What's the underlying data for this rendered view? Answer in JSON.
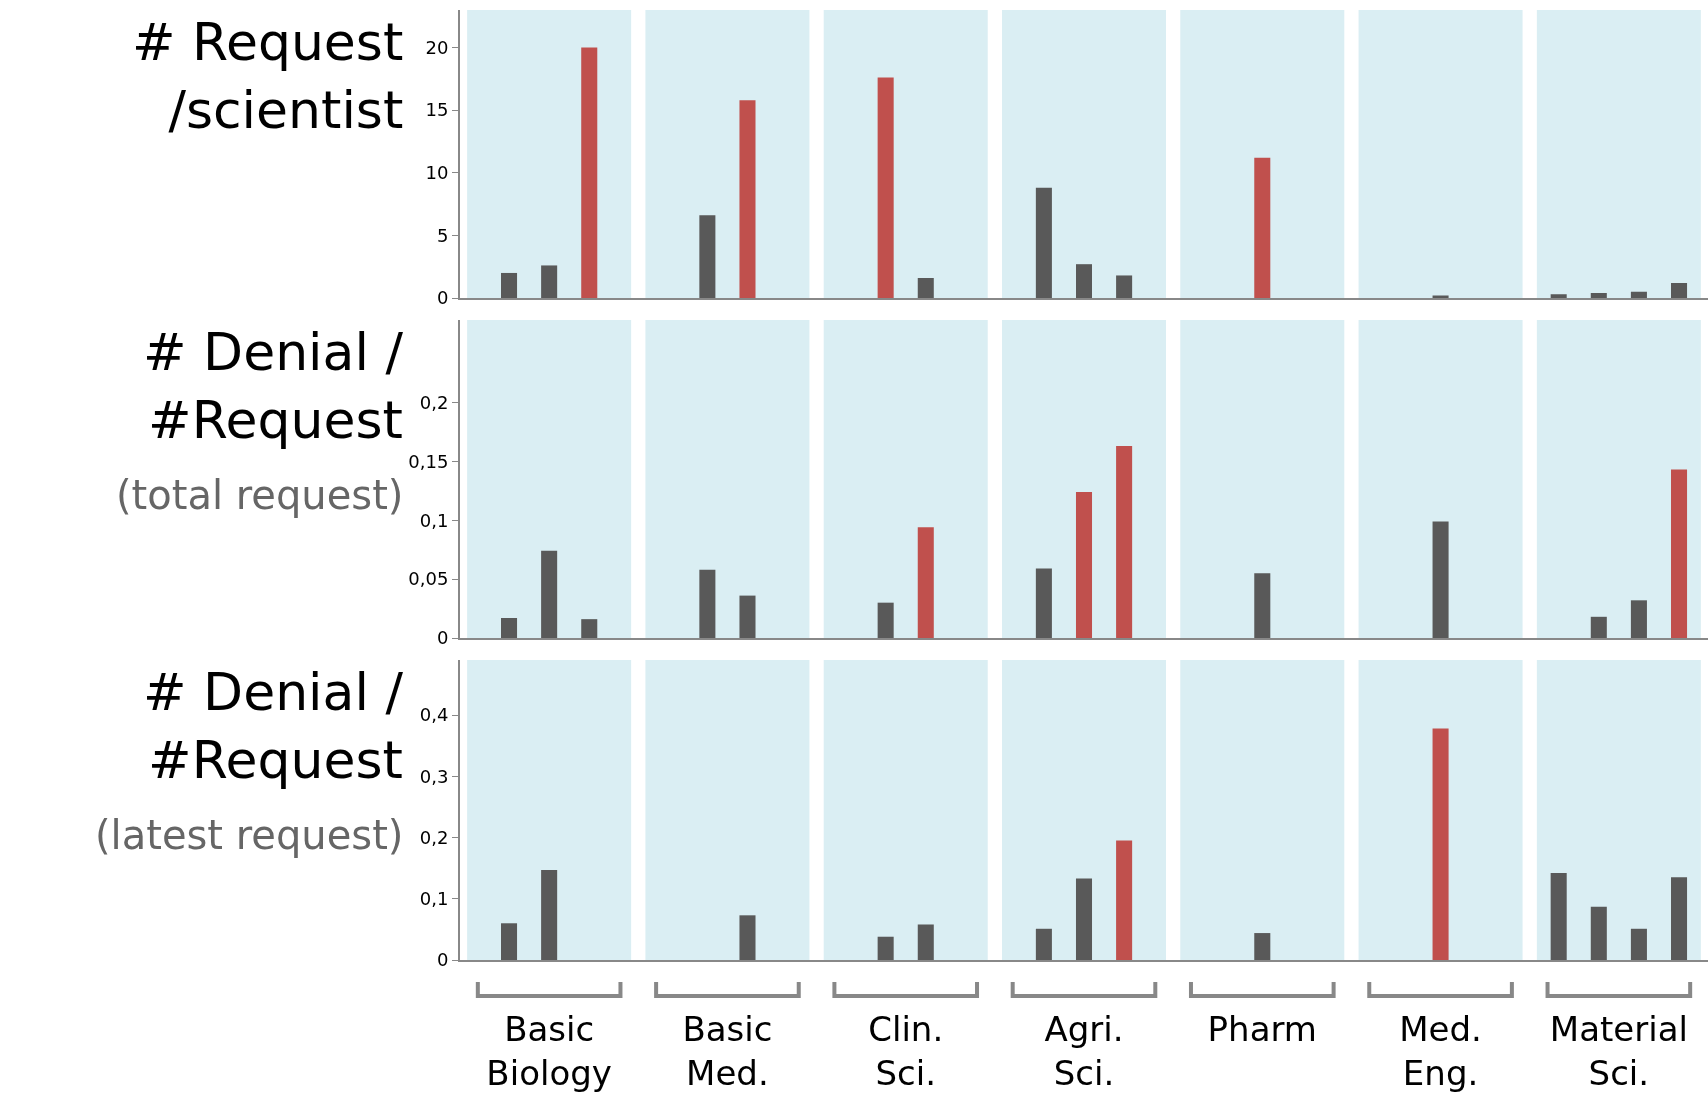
{
  "chart_data": [
    {
      "type": "bar",
      "ylabel": "# Request\n/scientist",
      "categories": [
        "Basic Biology",
        "Basic Med.",
        "Clin. Sci.",
        "Agri. Sci.",
        "Pharm",
        "Med. Eng.",
        "Material Sci."
      ],
      "series": [
        {
          "values": [
            2.0,
            6.6,
            17.6,
            8.8,
            11.2,
            0.2,
            0.3
          ],
          "colors": [
            "#595959",
            "#595959",
            "#c0504d",
            "#595959",
            "#c0504d",
            "#595959",
            "#595959"
          ]
        },
        {
          "values": [
            2.6,
            15.8,
            1.6,
            2.7,
            null,
            null,
            0.4
          ],
          "colors": [
            "#595959",
            "#c0504d",
            "#595959",
            "#595959",
            null,
            null,
            "#595959"
          ]
        },
        {
          "values": [
            20.0,
            null,
            null,
            1.8,
            null,
            null,
            0.5
          ],
          "colors": [
            "#c0504d",
            null,
            null,
            "#595959",
            null,
            null,
            "#595959"
          ]
        },
        {
          "values": [
            null,
            null,
            null,
            null,
            null,
            null,
            1.2
          ],
          "colors": [
            null,
            null,
            null,
            null,
            null,
            null,
            "#595959"
          ]
        }
      ],
      "bands": [
        {
          "axis": "x",
          "from": "Basic Biology",
          "to": "Basic Biology",
          "color": "#daeef3"
        },
        {
          "axis": "x",
          "from": "Basic Med.",
          "to": "Basic Med.",
          "color": "#daeef3"
        },
        {
          "axis": "x",
          "from": "Clin. Sci.",
          "to": "Clin. Sci.",
          "color": "#daeef3"
        },
        {
          "axis": "x",
          "from": "Agri. Sci.",
          "to": "Agri. Sci.",
          "color": "#daeef3"
        },
        {
          "axis": "x",
          "from": "Pharm",
          "to": "Pharm",
          "color": "#daeef3"
        },
        {
          "axis": "x",
          "from": "Med. Eng.",
          "to": "Med. Eng.",
          "color": "#daeef3"
        },
        {
          "axis": "x",
          "from": "Material Sci.",
          "to": "Material Sci.",
          "color": "#daeef3"
        }
      ],
      "ylim": [
        0,
        23
      ],
      "yticks": [
        0,
        5,
        10,
        15,
        20
      ],
      "tick_labels": "y"
    },
    {
      "type": "bar",
      "ylabel": "# Denial /\n#Request",
      "annotations": [
        "(total request)"
      ],
      "categories": [
        "Basic Biology",
        "Basic Med.",
        "Clin. Sci.",
        "Agri. Sci.",
        "Pharm",
        "Med. Eng.",
        "Material Sci."
      ],
      "series": [
        {
          "values": [
            0.017,
            0.058,
            0.03,
            0.059,
            0.055,
            0.099,
            0
          ],
          "colors": [
            "#595959",
            "#595959",
            "#595959",
            "#595959",
            "#595959",
            "#595959",
            "#595959"
          ]
        },
        {
          "values": [
            0.074,
            0.036,
            0.094,
            0.124,
            null,
            null,
            0.018
          ],
          "colors": [
            "#595959",
            "#595959",
            "#c0504d",
            "#c0504d",
            null,
            null,
            "#595959"
          ]
        },
        {
          "values": [
            0.016,
            null,
            null,
            0.163,
            null,
            null,
            0.032
          ],
          "colors": [
            "#595959",
            null,
            null,
            "#c0504d",
            null,
            null,
            "#595959"
          ]
        },
        {
          "values": [
            null,
            null,
            null,
            null,
            null,
            null,
            0.143
          ],
          "colors": [
            null,
            null,
            null,
            null,
            null,
            null,
            "#c0504d"
          ]
        }
      ],
      "bands": [
        {
          "axis": "x",
          "from": "Basic Biology",
          "to": "Basic Biology",
          "color": "#daeef3"
        },
        {
          "axis": "x",
          "from": "Basic Med.",
          "to": "Basic Med.",
          "color": "#daeef3"
        },
        {
          "axis": "x",
          "from": "Clin. Sci.",
          "to": "Clin. Sci.",
          "color": "#daeef3"
        },
        {
          "axis": "x",
          "from": "Agri. Sci.",
          "to": "Agri. Sci.",
          "color": "#daeef3"
        },
        {
          "axis": "x",
          "from": "Pharm",
          "to": "Pharm",
          "color": "#daeef3"
        },
        {
          "axis": "x",
          "from": "Med. Eng.",
          "to": "Med. Eng.",
          "color": "#daeef3"
        },
        {
          "axis": "x",
          "from": "Material Sci.",
          "to": "Material Sci.",
          "color": "#daeef3"
        }
      ],
      "ylim": [
        0,
        0.27
      ],
      "yticks": [
        0,
        {
          "value": 0.05,
          "label": "0,05"
        },
        {
          "value": 0.1,
          "label": "0,1"
        },
        {
          "value": 0.15,
          "label": "0,15"
        },
        {
          "value": 0.2,
          "label": "0,2"
        }
      ],
      "tick_labels": "y"
    },
    {
      "type": "bar",
      "ylabel": "# Denial /\n#Request",
      "annotations": [
        "(latest request)"
      ],
      "categories": [
        "Basic Biology",
        "Basic Med.",
        "Clin. Sci.",
        "Agri. Sci.",
        "Pharm",
        "Med. Eng.",
        "Material Sci."
      ],
      "series": [
        {
          "values": [
            0.06,
            0,
            0.038,
            0.051,
            0.044,
            0.378,
            0.142
          ],
          "colors": [
            "#595959",
            "#595959",
            "#595959",
            "#595959",
            "#595959",
            "#c0504d",
            "#595959"
          ]
        },
        {
          "values": [
            0.147,
            0.073,
            0.058,
            0.133,
            null,
            null,
            0.087
          ],
          "colors": [
            "#595959",
            "#595959",
            "#595959",
            "#595959",
            null,
            null,
            "#595959"
          ]
        },
        {
          "values": [
            0,
            null,
            null,
            0.195,
            null,
            null,
            0.051
          ],
          "colors": [
            "#595959",
            null,
            null,
            "#c0504d",
            null,
            null,
            "#595959"
          ]
        },
        {
          "values": [
            null,
            null,
            null,
            null,
            null,
            null,
            0.135
          ],
          "colors": [
            null,
            null,
            null,
            null,
            null,
            null,
            "#595959"
          ]
        }
      ],
      "bands": [
        {
          "axis": "x",
          "from": "Basic Biology",
          "to": "Basic Biology",
          "color": "#daeef3"
        },
        {
          "axis": "x",
          "from": "Basic Med.",
          "to": "Basic Med.",
          "color": "#daeef3"
        },
        {
          "axis": "x",
          "from": "Clin. Sci.",
          "to": "Clin. Sci.",
          "color": "#daeef3"
        },
        {
          "axis": "x",
          "from": "Agri. Sci.",
          "to": "Agri. Sci.",
          "color": "#daeef3"
        },
        {
          "axis": "x",
          "from": "Pharm",
          "to": "Pharm",
          "color": "#daeef3"
        },
        {
          "axis": "x",
          "from": "Med. Eng.",
          "to": "Med. Eng.",
          "color": "#daeef3"
        },
        {
          "axis": "x",
          "from": "Material Sci.",
          "to": "Material Sci.",
          "color": "#daeef3"
        }
      ],
      "ylim": [
        0,
        0.49
      ],
      "yticks": [
        0,
        {
          "value": 0.1,
          "label": "0,1"
        },
        {
          "value": 0.2,
          "label": "0,2"
        },
        {
          "value": 0.3,
          "label": "0,3"
        },
        {
          "value": 0.4,
          "label": "0,4"
        }
      ]
    }
  ]
}
